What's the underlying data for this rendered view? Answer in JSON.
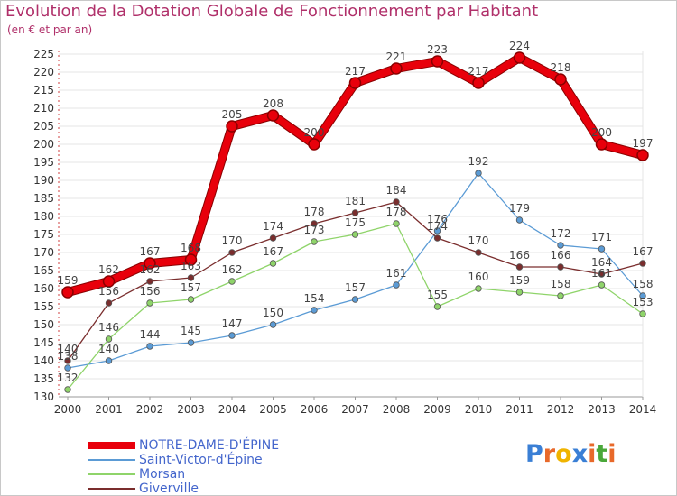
{
  "title": "Evolution de la Dotation Globale de Fonctionnement par Habitant",
  "subtitle": "(en € et par an)",
  "logo": {
    "text": "Proxiti",
    "letters": [
      "P",
      "r",
      "o",
      "x",
      "i",
      "t",
      "i"
    ],
    "colors": [
      "#3a7fd5",
      "#e8692a",
      "#f0b400",
      "#3a7fd5",
      "#e8692a",
      "#4aa83a",
      "#e8692a"
    ]
  },
  "chart_data": {
    "type": "line",
    "x": [
      "2000",
      "2001",
      "2002",
      "2003",
      "2004",
      "2005",
      "2006",
      "2007",
      "2008",
      "2009",
      "2010",
      "2011",
      "2012",
      "2013",
      "2014"
    ],
    "ylim": [
      130,
      225
    ],
    "yticks": [
      130,
      135,
      140,
      145,
      150,
      155,
      160,
      165,
      170,
      175,
      180,
      185,
      190,
      195,
      200,
      205,
      210,
      215,
      220,
      225
    ],
    "grid": "horizontal",
    "series": [
      {
        "name": "NOTRE-DAME-D'ÉPINE",
        "color": "#e8000b",
        "values": [
          159,
          162,
          167,
          168,
          205,
          208,
          200,
          217,
          221,
          223,
          217,
          224,
          218,
          200,
          197
        ]
      },
      {
        "name": "Saint-Victor-d'Épine",
        "color": "#5b9bd5",
        "values": [
          138,
          140,
          144,
          145,
          147,
          150,
          154,
          157,
          161,
          176,
          192,
          179,
          172,
          171,
          158
        ]
      },
      {
        "name": "Morsan",
        "color": "#8fd46a",
        "values": [
          132,
          146,
          156,
          157,
          162,
          167,
          173,
          175,
          178,
          155,
          160,
          159,
          158,
          161,
          153
        ]
      },
      {
        "name": "Giverville",
        "color": "#7a2d2d",
        "values": [
          140,
          156,
          162,
          163,
          170,
          174,
          178,
          181,
          184,
          174,
          170,
          166,
          166,
          164,
          167
        ]
      }
    ]
  }
}
